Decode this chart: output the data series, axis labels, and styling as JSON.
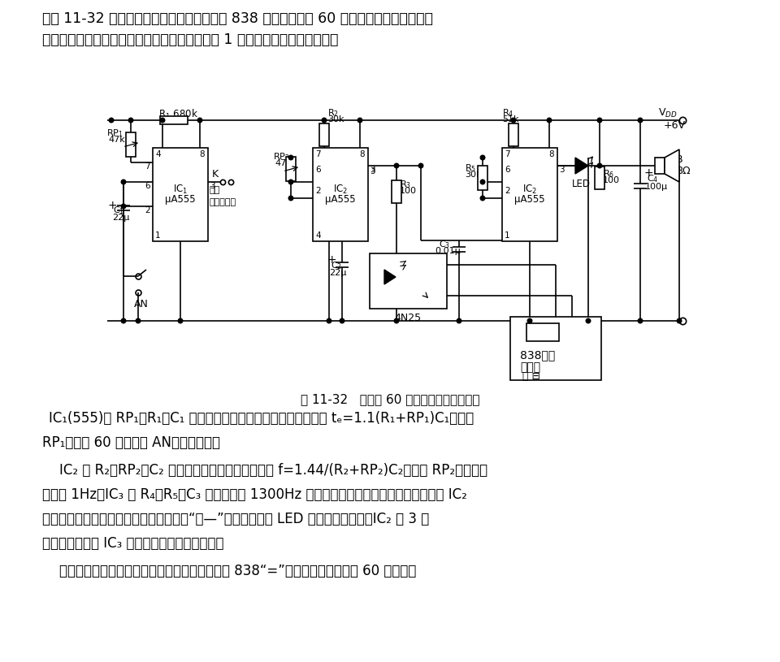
{
  "bg_color": "#ffffff",
  "text_color": "#000000",
  "para1_line1": "如图 11-32 所示，该计时器的显示终端采用 838 计算器，它由 60 秒钟定时器、秒信号发生",
  "para1_line2": "器、光电耦合器和音响电路组成。用于智力竞赛 1 分钟抢答计时或其他场合。",
  "caption": "图 11-32   竞赛用 60 秒声光数字计时器电路",
  "para2_line1": "IC₁(555)和 RP₁、R₁、C₁ 组成单稳定时电路，单稳态的暂稳时间 tₑ=1.1(R₁+RP₁)C₁，调节",
  "para2_line2": "RP₁，定在 60 秒。按下 AN，计时开始。",
  "para3_line1": "    IC₂ 和 R₂、RP₂、C₂ 组成秒信号振荡器，振荡频率 f=1.44/(R₂+RP₂)C₂，调节 RP₂，使振荡",
  "para3_line2": "频率在 1Hz。IC₃ 和 R₄、R₅、C₃ 组成频率在 1300Hz 左右的音频振荡器，它的复位端受控于 IC₂",
  "para3_line3": "的输出，每发一个秒脉冲信号，就会发出“咪—”的音响，同时 LED 发光。计时结束，IC₂ 的 3 脚",
  "para3_line4": "转为低电平，使 IC₃ 处于强制复位状态，停振。",
  "para4": "    每发出一个秒脉冲，光电耦合器对其耦合并加至 838“=”端，计数一次，直至 60 秒结束。"
}
